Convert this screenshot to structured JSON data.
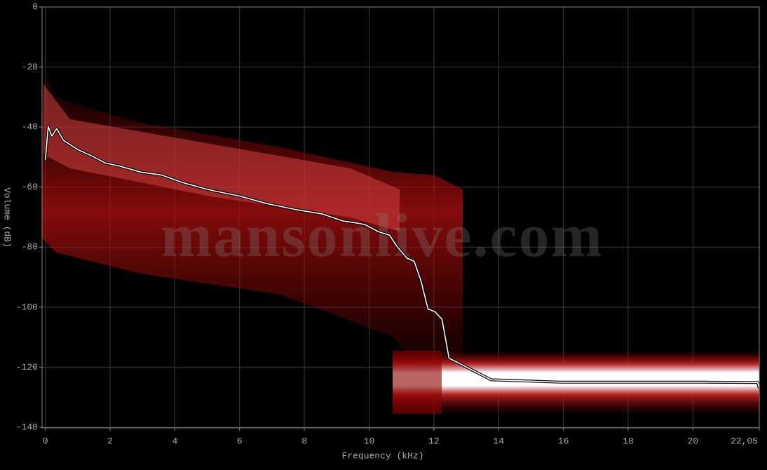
{
  "chart_data": {
    "type": "line",
    "watermark": "mansonlive.com",
    "xlabel": "Frequency (kHz)",
    "ylabel": "Volume (dB)",
    "xlim": [
      -0.1,
      22.05
    ],
    "ylim": [
      -140,
      0
    ],
    "xticks": [
      0,
      2,
      4,
      6,
      8,
      10,
      12,
      14,
      16,
      18,
      20,
      {
        "value": 22.05,
        "label": "22,05"
      }
    ],
    "yticks": [
      0,
      -20,
      -40,
      -60,
      -80,
      -100,
      -120,
      -140
    ],
    "grid": true,
    "x": [
      0,
      0.09,
      0.2,
      0.35,
      0.56,
      1.0,
      1.43,
      1.86,
      2.3,
      2.94,
      3.6,
      4.24,
      5.1,
      6.0,
      6.84,
      7.7,
      8.57,
      9.2,
      9.65,
      9.87,
      10.3,
      10.63,
      10.84,
      11.17,
      11.39,
      11.6,
      11.82,
      12.03,
      12.25,
      12.47,
      12.8,
      13.1,
      13.77,
      15.9,
      20.3,
      22.0,
      22.05
    ],
    "series": [
      {
        "color": "#ffffff",
        "values": [
          -51,
          -39.8,
          -43,
          -40.5,
          -44.4,
          -47.5,
          -49.6,
          -52,
          -53,
          -55,
          -56,
          -58.5,
          -61,
          -63,
          -65.5,
          -67.4,
          -69,
          -71.3,
          -72,
          -72.5,
          -74.9,
          -76,
          -79.5,
          -83.7,
          -84.7,
          -91.2,
          -100.6,
          -101.5,
          -104,
          -117,
          -118.8,
          -120.5,
          -124.2,
          -125,
          -125,
          -125.1,
          -127
        ]
      }
    ]
  }
}
